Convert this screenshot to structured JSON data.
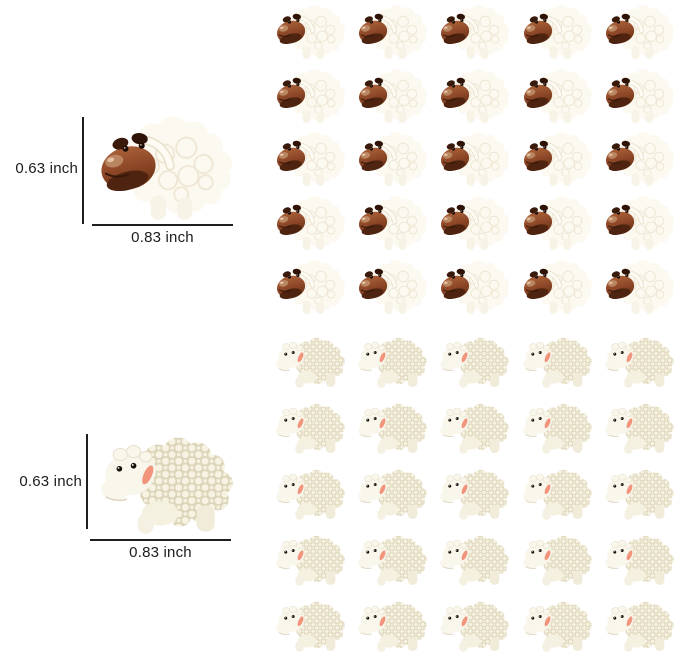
{
  "image": {
    "background": "#ffffff"
  },
  "annotations": {
    "brown_sheep": {
      "height_label": "0.63 inch",
      "width_label": "0.83 inch"
    },
    "white_sheep": {
      "height_label": "0.63 inch",
      "width_label": "0.83 inch"
    }
  },
  "grid": {
    "brown": {
      "rows": 5,
      "cols": 5,
      "count": 25
    },
    "white": {
      "rows": 5,
      "cols": 5,
      "count": 25
    }
  },
  "colors": {
    "face_brown": "#8a4526",
    "face_dark_jaw": "#4e2410",
    "ear_dark_brown": "#331705",
    "wool_cream": "#fcf9f0",
    "wool_texture": "#dcd4b8",
    "ear_pink": "#f2937b",
    "dimension_line": "#1f1f1f",
    "label_text": "#1c1c1c"
  }
}
